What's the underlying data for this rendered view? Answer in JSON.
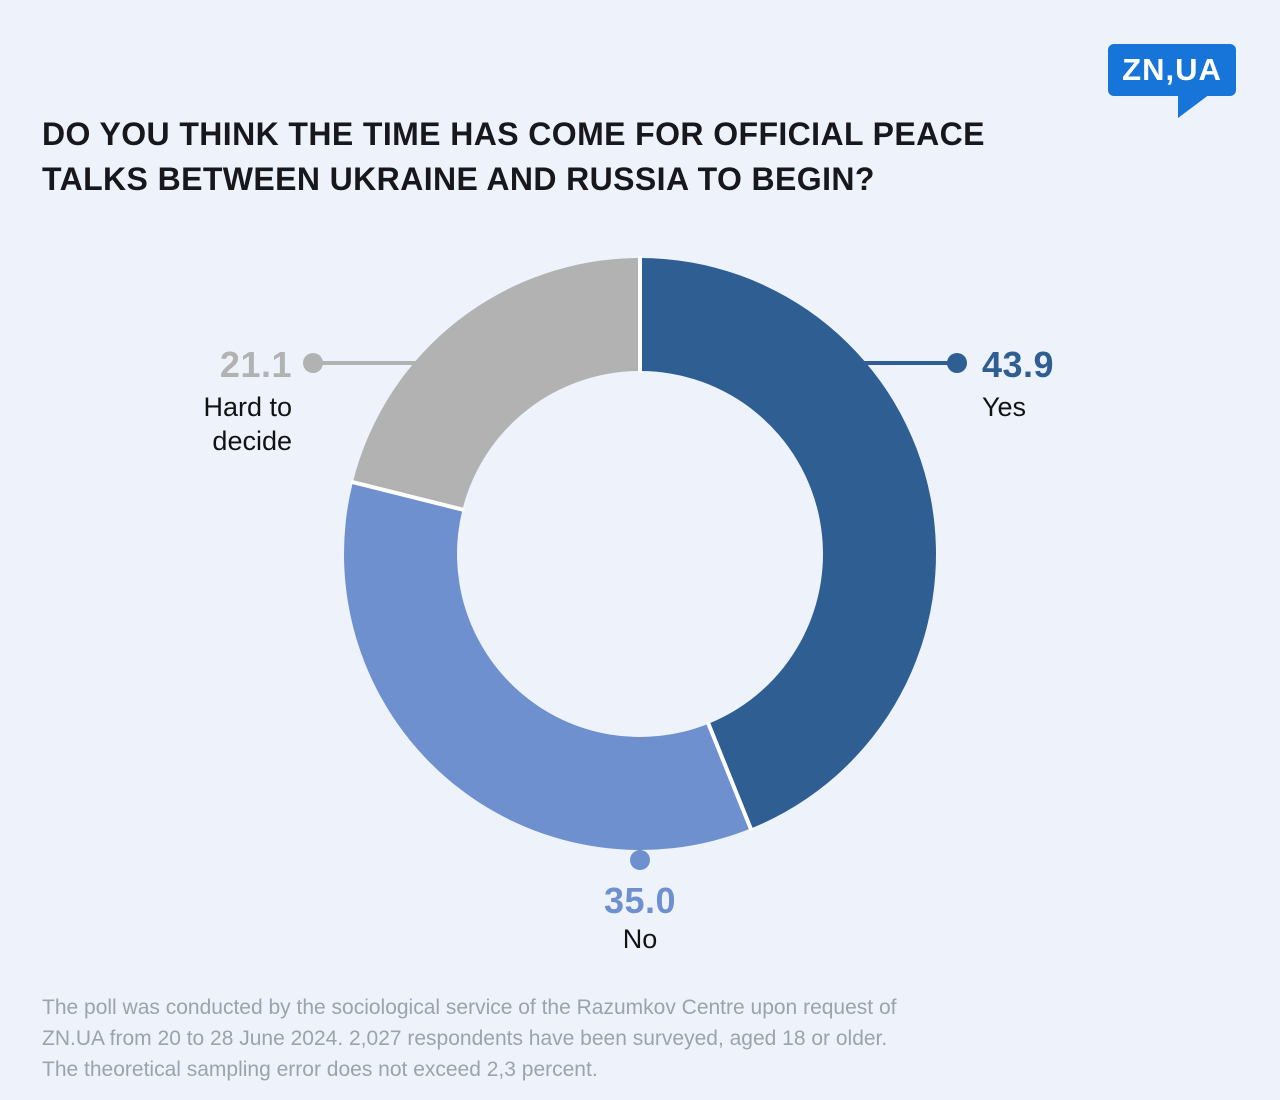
{
  "logo": {
    "text": "ZN,UA"
  },
  "title": {
    "full": "DO YOU THINK THE TIME HAS COME FOR OFFICIAL PEACE TALKS BETWEEN UKRAINE AND RUSSIA TO BEGIN?",
    "line1": "DO YOU THINK THE TIME HAS COME FOR OFFICIAL PEACE",
    "line2": "TALKS BETWEEN UKRAINE AND RUSSIA TO BEGIN?"
  },
  "chart_data": {
    "type": "pie",
    "subtype": "donut",
    "title": "DO YOU THINK THE TIME HAS COME FOR OFFICIAL PEACE TALKS BETWEEN UKRAINE AND RUSSIA TO BEGIN?",
    "labels": [
      "Yes",
      "No",
      "Hard to decide"
    ],
    "values": [
      43.9,
      35.0,
      21.1
    ],
    "value_labels": [
      "43.9",
      "35.0",
      "21.1"
    ],
    "colors": [
      "#2e5e92",
      "#6e90cf",
      "#b2b2b2"
    ],
    "start_angle_deg": 0,
    "direction": "clockwise",
    "legend_position": "callout-labels"
  },
  "callouts": {
    "yes": {
      "value": "43.9",
      "label": "Yes"
    },
    "no": {
      "value": "35.0",
      "label": "No"
    },
    "hard": {
      "value": "21.1",
      "label": "Hard to decide"
    }
  },
  "footer": {
    "line1": "The poll was conducted by the sociological service of the Razumkov Centre upon request of",
    "line2": "ZN.UA from 20 to 28 June 2024. 2,027 respondents have been surveyed, aged 18 or older.",
    "line3": "The theoretical sampling error does not exceed 2,3 percent."
  },
  "colors": {
    "background": "#eef3fb",
    "yes": "#2e5e92",
    "no": "#6e90cf",
    "hard": "#b2b2b2",
    "logo_blue": "#1774d8",
    "title_text": "#17171c",
    "label_text": "#121212",
    "footer_text": "#9aa3ae",
    "separator": "#ffffff"
  }
}
